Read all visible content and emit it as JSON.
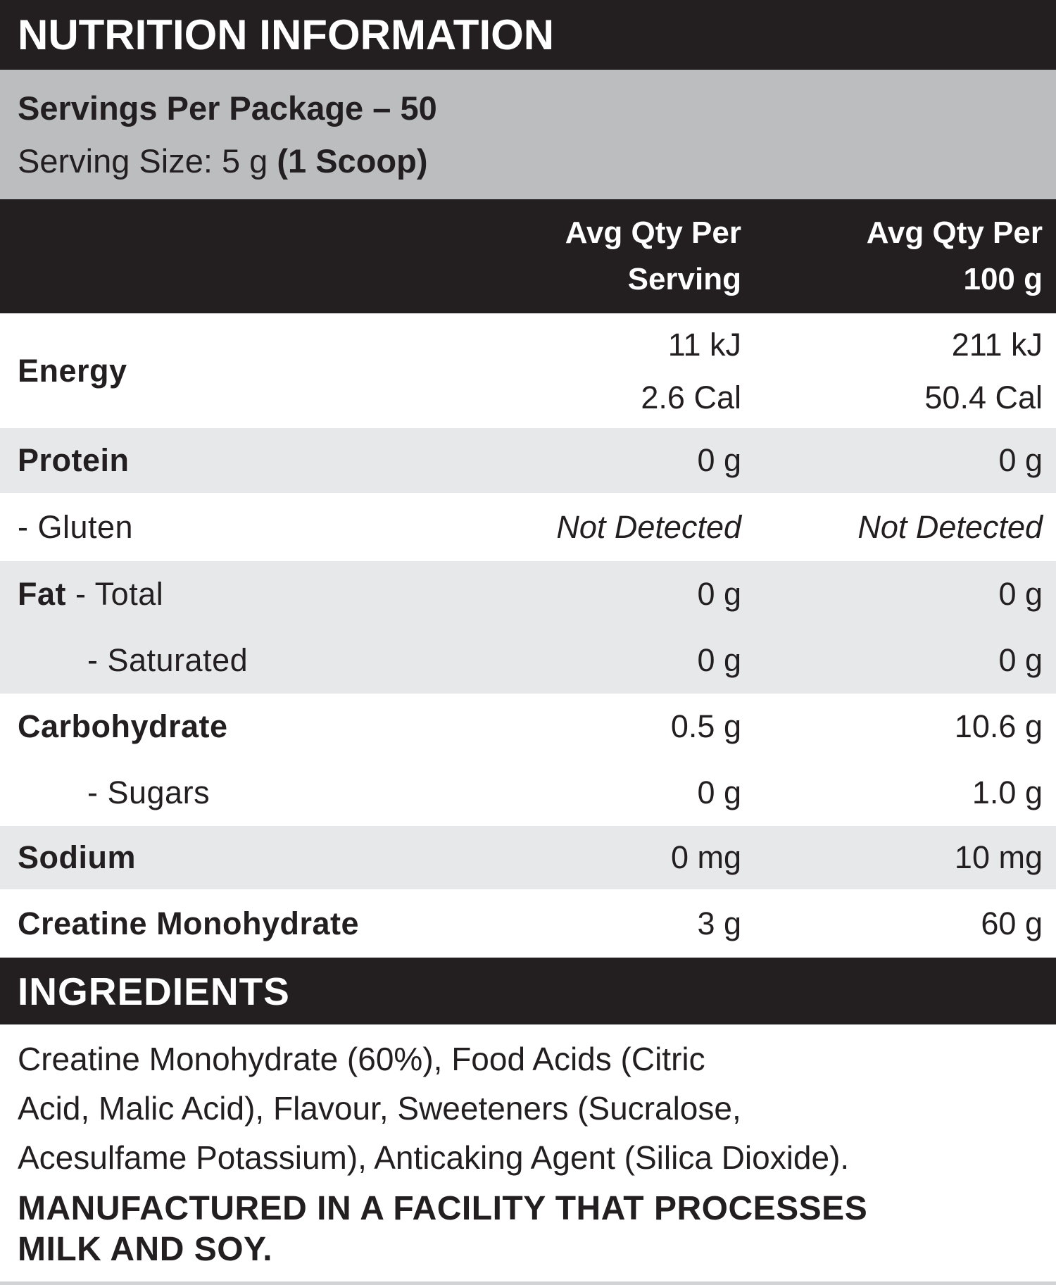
{
  "colors": {
    "ink": "#231f20",
    "black": "#231f20",
    "band_gray": "#bbbdbf",
    "row_gray": "#e7e8e9",
    "strip_gray": "#d1d3d4",
    "white": "#ffffff"
  },
  "header": {
    "title": "NUTRITION INFORMATION"
  },
  "serving_info": {
    "servings_per_package": "Servings Per Package – 50",
    "serving_size_prefix": "Serving Size: 5 g ",
    "serving_size_scoop": "(1 Scoop)"
  },
  "column_headers": {
    "col1_line1": "Avg Qty Per",
    "col1_line2": "Serving",
    "col2_line1": "Avg Qty Per",
    "col2_line2": "100 g"
  },
  "table": {
    "rows": {
      "energy": {
        "label": "Energy",
        "serving_kj": "11 kJ",
        "serving_cal": "2.6 Cal",
        "per100g_kj": "211 kJ",
        "per100g_cal": "50.4 Cal"
      },
      "protein": {
        "label": "Protein",
        "serving": "0 g",
        "per100g": "0 g"
      },
      "gluten": {
        "label": "- Gluten",
        "serving": "Not Detected",
        "per100g": "Not Detected"
      },
      "fat_total": {
        "label_bold": "Fat",
        "label_rest": " - Total",
        "serving": "0 g",
        "per100g": "0 g"
      },
      "saturated": {
        "label": "- Saturated",
        "serving": "0 g",
        "per100g": "0 g"
      },
      "carbohydrate": {
        "label": "Carbohydrate",
        "serving": "0.5 g",
        "per100g": "10.6 g"
      },
      "sugars": {
        "label": "- Sugars",
        "serving": "0 g",
        "per100g": "1.0 g"
      },
      "sodium": {
        "label": "Sodium",
        "serving": "0 mg",
        "per100g": "10 mg"
      },
      "creatine_monohydrate": {
        "label": "Creatine Monohydrate",
        "serving": "3 g",
        "per100g": "60 g"
      }
    }
  },
  "ingredients": {
    "heading": "INGREDIENTS",
    "lines": [
      "Creatine Monohydrate (60%), Food Acids (Citric",
      "Acid, Malic Acid), Flavour, Sweeteners (Sucralose,",
      "Acesulfame Potassium), Anticaking Agent (Silica Dioxide)."
    ]
  },
  "allergen": {
    "lines": [
      "MANUFACTURED IN A FACILITY THAT PROCESSES",
      "MILK AND SOY."
    ]
  }
}
